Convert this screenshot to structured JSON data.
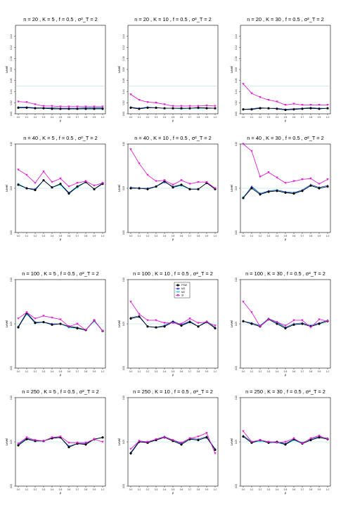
{
  "figure": {
    "ylabel": "Level",
    "xlabel": "ρ",
    "reference_line_color": "#9fd8e6"
  },
  "legend": {
    "entries": [
      {
        "label": "FSW",
        "color": "#000000",
        "marker": "circle"
      },
      {
        "label": "M3",
        "color": "#1f3fbf",
        "marker": "triangle"
      },
      {
        "label": "M2",
        "color": "#00c8d8",
        "marker": "plus"
      },
      {
        "label": "SI",
        "color": "#e020d0",
        "marker": "triangle-down"
      }
    ]
  },
  "chart_data": [
    {
      "type": "line",
      "title": "n = 20 , K = 5 , f = 0.5 , σ²_T = 2",
      "x": [
        0.0,
        0.1,
        0.2,
        0.3,
        0.4,
        0.5,
        0.6,
        0.7,
        0.8,
        0.9,
        1.0
      ],
      "ylim": [
        0,
        0.16
      ],
      "yticks": [
        0.0,
        0.02,
        0.04,
        0.06,
        0.08,
        0.1,
        0.12,
        0.14
      ],
      "series": [
        {
          "name": "FSW",
          "values": [
            0.011,
            0.011,
            0.01,
            0.01,
            0.009,
            0.009,
            0.009,
            0.009,
            0.009,
            0.009,
            0.009
          ]
        },
        {
          "name": "M3",
          "values": [
            0.012,
            0.012,
            0.011,
            0.011,
            0.011,
            0.01,
            0.01,
            0.01,
            0.011,
            0.011,
            0.011
          ]
        },
        {
          "name": "M2",
          "values": [
            0.011,
            0.011,
            0.01,
            0.01,
            0.01,
            0.009,
            0.009,
            0.009,
            0.01,
            0.01,
            0.01
          ]
        },
        {
          "name": "SI",
          "values": [
            0.022,
            0.021,
            0.017,
            0.014,
            0.014,
            0.013,
            0.013,
            0.013,
            0.013,
            0.013,
            0.013
          ]
        }
      ]
    },
    {
      "type": "line",
      "title": "n = 20 , K = 10 , f = 0.5 , σ²_T = 2",
      "x": [
        0.0,
        0.1,
        0.2,
        0.3,
        0.4,
        0.5,
        0.6,
        0.7,
        0.8,
        0.9,
        1.0
      ],
      "ylim": [
        0,
        0.16
      ],
      "yticks": [
        0.0,
        0.02,
        0.04,
        0.06,
        0.08,
        0.1,
        0.12,
        0.14
      ],
      "series": [
        {
          "name": "FSW",
          "values": [
            0.011,
            0.009,
            0.011,
            0.011,
            0.01,
            0.01,
            0.01,
            0.01,
            0.011,
            0.01,
            0.01
          ]
        },
        {
          "name": "M3",
          "values": [
            0.012,
            0.01,
            0.012,
            0.011,
            0.01,
            0.01,
            0.01,
            0.01,
            0.011,
            0.011,
            0.01
          ]
        },
        {
          "name": "M2",
          "values": [
            0.011,
            0.009,
            0.011,
            0.011,
            0.01,
            0.01,
            0.009,
            0.01,
            0.01,
            0.01,
            0.01
          ]
        },
        {
          "name": "SI",
          "values": [
            0.035,
            0.025,
            0.021,
            0.02,
            0.017,
            0.014,
            0.014,
            0.014,
            0.014,
            0.015,
            0.014
          ]
        }
      ]
    },
    {
      "type": "line",
      "title": "n = 20 , K = 30 , f = 0.5 , σ²_T = 2",
      "x": [
        0.0,
        0.1,
        0.2,
        0.3,
        0.4,
        0.5,
        0.6,
        0.7,
        0.8,
        0.9,
        1.0
      ],
      "ylim": [
        0,
        0.16
      ],
      "yticks": [
        0.0,
        0.02,
        0.04,
        0.06,
        0.08,
        0.1,
        0.12,
        0.14
      ],
      "series": [
        {
          "name": "FSW",
          "values": [
            0.008,
            0.008,
            0.01,
            0.01,
            0.009,
            0.007,
            0.008,
            0.009,
            0.01,
            0.009,
            0.01
          ]
        },
        {
          "name": "M3",
          "values": [
            0.008,
            0.009,
            0.011,
            0.01,
            0.01,
            0.008,
            0.009,
            0.01,
            0.011,
            0.01,
            0.01
          ]
        },
        {
          "name": "M2",
          "values": [
            0.008,
            0.008,
            0.01,
            0.01,
            0.009,
            0.007,
            0.008,
            0.009,
            0.01,
            0.009,
            0.01
          ]
        },
        {
          "name": "SI",
          "values": [
            0.054,
            0.037,
            0.03,
            0.025,
            0.022,
            0.016,
            0.018,
            0.016,
            0.016,
            0.016,
            0.016
          ]
        }
      ]
    },
    {
      "type": "line",
      "title": "n = 40 , K = 5 , f = 0.5 , σ²_T = 2",
      "x": [
        0.0,
        0.1,
        0.2,
        0.3,
        0.4,
        0.5,
        0.6,
        0.7,
        0.8,
        0.9,
        1.0
      ],
      "ylim": [
        0,
        0.1
      ],
      "yticks": [
        0.0,
        0.05,
        0.1
      ],
      "series": [
        {
          "name": "FSW",
          "values": [
            0.054,
            0.05,
            0.048,
            0.059,
            0.051,
            0.055,
            0.044,
            0.052,
            0.057,
            0.049,
            0.055
          ]
        },
        {
          "name": "M3",
          "values": [
            0.054,
            0.05,
            0.049,
            0.059,
            0.051,
            0.055,
            0.045,
            0.052,
            0.057,
            0.049,
            0.056
          ]
        },
        {
          "name": "M2",
          "values": [
            0.055,
            0.05,
            0.048,
            0.059,
            0.051,
            0.054,
            0.044,
            0.051,
            0.057,
            0.049,
            0.056
          ]
        },
        {
          "name": "SI",
          "values": [
            0.071,
            0.065,
            0.056,
            0.069,
            0.057,
            0.061,
            0.052,
            0.056,
            0.058,
            0.053,
            0.056
          ]
        }
      ]
    },
    {
      "type": "line",
      "title": "n = 40 , K = 10 , f = 0.5 , σ²_T = 2",
      "x": [
        0.0,
        0.1,
        0.2,
        0.3,
        0.4,
        0.5,
        0.6,
        0.7,
        0.8,
        0.9,
        1.0
      ],
      "ylim": [
        0,
        0.1
      ],
      "yticks": [
        0.0,
        0.05,
        0.1
      ],
      "series": [
        {
          "name": "FSW",
          "values": [
            0.05,
            0.05,
            0.049,
            0.052,
            0.058,
            0.051,
            0.054,
            0.049,
            0.049,
            0.056,
            0.049
          ]
        },
        {
          "name": "M3",
          "values": [
            0.051,
            0.05,
            0.05,
            0.052,
            0.057,
            0.052,
            0.054,
            0.049,
            0.049,
            0.056,
            0.05
          ]
        },
        {
          "name": "M2",
          "values": [
            0.05,
            0.05,
            0.049,
            0.052,
            0.058,
            0.051,
            0.053,
            0.049,
            0.049,
            0.056,
            0.049
          ]
        },
        {
          "name": "SI",
          "values": [
            0.094,
            0.078,
            0.065,
            0.058,
            0.059,
            0.054,
            0.059,
            0.055,
            0.057,
            0.057,
            0.05
          ]
        }
      ]
    },
    {
      "type": "line",
      "title": "n = 40 , K = 30 , f = 0.5 , σ²_T = 2",
      "x": [
        0.0,
        0.1,
        0.2,
        0.3,
        0.4,
        0.5,
        0.6,
        0.7,
        0.8,
        0.9,
        1.0
      ],
      "ylim": [
        0,
        0.1
      ],
      "yticks": [
        0.0,
        0.05,
        0.1
      ],
      "series": [
        {
          "name": "FSW",
          "values": [
            0.039,
            0.05,
            0.043,
            0.046,
            0.047,
            0.045,
            0.044,
            0.047,
            0.053,
            0.05,
            0.052
          ]
        },
        {
          "name": "M3",
          "values": [
            0.039,
            0.052,
            0.044,
            0.047,
            0.048,
            0.046,
            0.045,
            0.048,
            0.054,
            0.051,
            0.053
          ]
        },
        {
          "name": "M2",
          "values": [
            0.04,
            0.051,
            0.044,
            0.046,
            0.048,
            0.045,
            0.045,
            0.047,
            0.053,
            0.05,
            0.052
          ]
        },
        {
          "name": "SI",
          "values": [
            0.11,
            0.092,
            0.063,
            0.068,
            0.062,
            0.056,
            0.058,
            0.06,
            0.061,
            0.055,
            0.06
          ]
        }
      ]
    },
    {
      "type": "line",
      "title": "n = 100 , K = 5 , f = 0.5 , σ²_T = 2",
      "x": [
        0.0,
        0.1,
        0.2,
        0.3,
        0.4,
        0.5,
        0.6,
        0.7,
        0.8,
        0.9,
        1.0
      ],
      "ylim": [
        0,
        0.1
      ],
      "yticks": [
        0.0,
        0.05,
        0.1
      ],
      "series": [
        {
          "name": "FSW",
          "values": [
            0.046,
            0.062,
            0.051,
            0.052,
            0.049,
            0.05,
            0.047,
            0.045,
            0.043,
            0.054,
            0.042
          ]
        },
        {
          "name": "M3",
          "values": [
            0.047,
            0.063,
            0.052,
            0.052,
            0.05,
            0.05,
            0.047,
            0.046,
            0.043,
            0.054,
            0.042
          ]
        },
        {
          "name": "M2",
          "values": [
            0.047,
            0.061,
            0.051,
            0.052,
            0.049,
            0.05,
            0.046,
            0.045,
            0.043,
            0.053,
            0.042
          ]
        },
        {
          "name": "SI",
          "values": [
            0.056,
            0.063,
            0.056,
            0.059,
            0.057,
            0.055,
            0.047,
            0.05,
            0.043,
            0.054,
            0.042
          ]
        }
      ]
    },
    {
      "type": "line",
      "title": "n = 100 , K = 10 , f = 0.5 , σ²_T = 2",
      "x": [
        0.0,
        0.1,
        0.2,
        0.3,
        0.4,
        0.5,
        0.6,
        0.7,
        0.8,
        0.9,
        1.0
      ],
      "ylim": [
        0,
        0.1
      ],
      "yticks": [
        0.0,
        0.05,
        0.1
      ],
      "series": [
        {
          "name": "FSW",
          "values": [
            0.056,
            0.058,
            0.047,
            0.046,
            0.047,
            0.052,
            0.048,
            0.052,
            0.047,
            0.052,
            0.045
          ]
        },
        {
          "name": "M3",
          "values": [
            0.057,
            0.059,
            0.047,
            0.046,
            0.048,
            0.053,
            0.049,
            0.053,
            0.047,
            0.053,
            0.046
          ]
        },
        {
          "name": "M2",
          "values": [
            0.056,
            0.058,
            0.047,
            0.046,
            0.048,
            0.053,
            0.048,
            0.053,
            0.047,
            0.052,
            0.045
          ]
        },
        {
          "name": "SI",
          "values": [
            0.075,
            0.061,
            0.054,
            0.054,
            0.051,
            0.051,
            0.05,
            0.056,
            0.051,
            0.052,
            0.048
          ]
        }
      ]
    },
    {
      "type": "line",
      "title": "n = 100 , K = 30 , f = 0.5 , σ²_T = 2",
      "x": [
        0.0,
        0.1,
        0.2,
        0.3,
        0.4,
        0.5,
        0.6,
        0.7,
        0.8,
        0.9,
        1.0
      ],
      "ylim": [
        0,
        0.1
      ],
      "yticks": [
        0.0,
        0.05,
        0.1
      ],
      "series": [
        {
          "name": "FSW",
          "values": [
            0.053,
            0.05,
            0.047,
            0.055,
            0.05,
            0.045,
            0.049,
            0.05,
            0.047,
            0.05,
            0.053
          ]
        },
        {
          "name": "M3",
          "values": [
            0.053,
            0.051,
            0.048,
            0.056,
            0.052,
            0.046,
            0.05,
            0.051,
            0.048,
            0.051,
            0.054
          ]
        },
        {
          "name": "M2",
          "values": [
            0.053,
            0.05,
            0.047,
            0.055,
            0.051,
            0.045,
            0.049,
            0.05,
            0.047,
            0.05,
            0.053
          ]
        },
        {
          "name": "SI",
          "values": [
            0.075,
            0.063,
            0.047,
            0.055,
            0.052,
            0.048,
            0.054,
            0.054,
            0.046,
            0.055,
            0.053
          ]
        }
      ]
    },
    {
      "type": "line",
      "title": "n = 250 , K = 5 , f = 0.5 , σ²_T = 2",
      "x": [
        0.0,
        0.1,
        0.2,
        0.3,
        0.4,
        0.5,
        0.6,
        0.7,
        0.8,
        0.9,
        1.0
      ],
      "ylim": [
        0,
        0.1
      ],
      "yticks": [
        0.0,
        0.05,
        0.1
      ],
      "series": [
        {
          "name": "FSW",
          "values": [
            0.046,
            0.053,
            0.051,
            0.051,
            0.054,
            0.055,
            0.044,
            0.048,
            0.047,
            0.053,
            0.055
          ]
        },
        {
          "name": "M3",
          "values": [
            0.047,
            0.054,
            0.051,
            0.051,
            0.055,
            0.055,
            0.045,
            0.048,
            0.048,
            0.053,
            0.055
          ]
        },
        {
          "name": "M2",
          "values": [
            0.047,
            0.053,
            0.051,
            0.051,
            0.054,
            0.055,
            0.045,
            0.048,
            0.047,
            0.053,
            0.055
          ]
        },
        {
          "name": "SI",
          "values": [
            0.048,
            0.055,
            0.052,
            0.051,
            0.055,
            0.056,
            0.049,
            0.049,
            0.049,
            0.053,
            0.05
          ]
        }
      ]
    },
    {
      "type": "line",
      "title": "n = 250 , K = 10 , f = 0.5 , σ²_T = 2",
      "x": [
        0.0,
        0.1,
        0.2,
        0.3,
        0.4,
        0.5,
        0.6,
        0.7,
        0.8,
        0.9,
        1.0
      ],
      "ylim": [
        0,
        0.1
      ],
      "yticks": [
        0.0,
        0.05,
        0.1
      ],
      "series": [
        {
          "name": "FSW",
          "values": [
            0.037,
            0.05,
            0.049,
            0.052,
            0.055,
            0.051,
            0.047,
            0.053,
            0.052,
            0.055,
            0.041
          ]
        },
        {
          "name": "M3",
          "values": [
            0.038,
            0.051,
            0.049,
            0.053,
            0.056,
            0.052,
            0.048,
            0.054,
            0.053,
            0.056,
            0.042
          ]
        },
        {
          "name": "M2",
          "values": [
            0.037,
            0.05,
            0.049,
            0.052,
            0.055,
            0.051,
            0.047,
            0.053,
            0.052,
            0.055,
            0.041
          ]
        },
        {
          "name": "SI",
          "values": [
            0.042,
            0.051,
            0.05,
            0.053,
            0.055,
            0.052,
            0.049,
            0.054,
            0.056,
            0.06,
            0.037
          ]
        }
      ]
    },
    {
      "type": "line",
      "title": "n = 250 , K = 30 , f = 0.5 , σ²_T = 2",
      "x": [
        0.0,
        0.1,
        0.2,
        0.3,
        0.4,
        0.5,
        0.6,
        0.7,
        0.8,
        0.9,
        1.0
      ],
      "ylim": [
        0,
        0.1
      ],
      "yticks": [
        0.0,
        0.05,
        0.1
      ],
      "series": [
        {
          "name": "FSW",
          "values": [
            0.056,
            0.049,
            0.052,
            0.049,
            0.05,
            0.047,
            0.053,
            0.048,
            0.052,
            0.055,
            0.053
          ]
        },
        {
          "name": "M3",
          "values": [
            0.057,
            0.05,
            0.052,
            0.05,
            0.05,
            0.048,
            0.053,
            0.049,
            0.053,
            0.056,
            0.054
          ]
        },
        {
          "name": "M2",
          "values": [
            0.056,
            0.049,
            0.051,
            0.049,
            0.049,
            0.047,
            0.052,
            0.048,
            0.052,
            0.055,
            0.053
          ]
        },
        {
          "name": "SI",
          "values": [
            0.062,
            0.05,
            0.052,
            0.05,
            0.049,
            0.05,
            0.054,
            0.048,
            0.054,
            0.057,
            0.053
          ]
        }
      ]
    }
  ]
}
